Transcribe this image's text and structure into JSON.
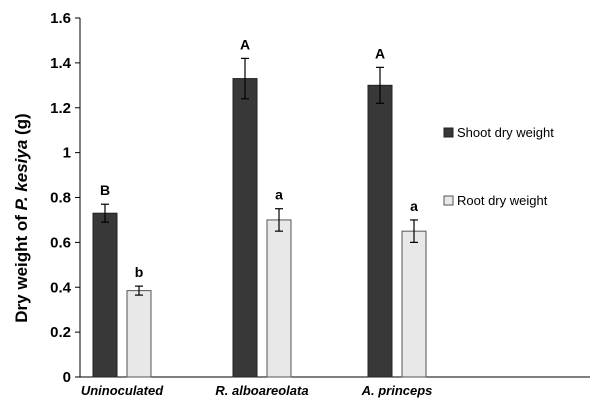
{
  "chart_data": {
    "type": "bar",
    "title": "",
    "xlabel": "",
    "ylabel": {
      "prefix": "Dry weight  of ",
      "species": "P. kesiya",
      "suffix": " (g)"
    },
    "ylim": [
      0,
      1.6
    ],
    "yticks": [
      "0",
      "0.2",
      "0.4",
      "0.6",
      "0.8",
      "1",
      "1.2",
      "1.4",
      "1.6"
    ],
    "grid": false,
    "legend_position": "right",
    "categories": [
      "Uninoculated",
      "R. alboareolata",
      "A. princeps"
    ],
    "series": [
      {
        "name": "Shoot dry weight",
        "color": "#383838",
        "values": [
          0.73,
          1.33,
          1.3
        ],
        "errors": [
          0.04,
          0.09,
          0.08
        ],
        "significance": [
          "B",
          "A",
          "A"
        ]
      },
      {
        "name": "Root dry weight",
        "color": "#e8e8e8",
        "values": [
          0.385,
          0.7,
          0.65
        ],
        "errors": [
          0.02,
          0.05,
          0.05
        ],
        "significance": [
          "b",
          "a",
          "a"
        ]
      }
    ]
  }
}
